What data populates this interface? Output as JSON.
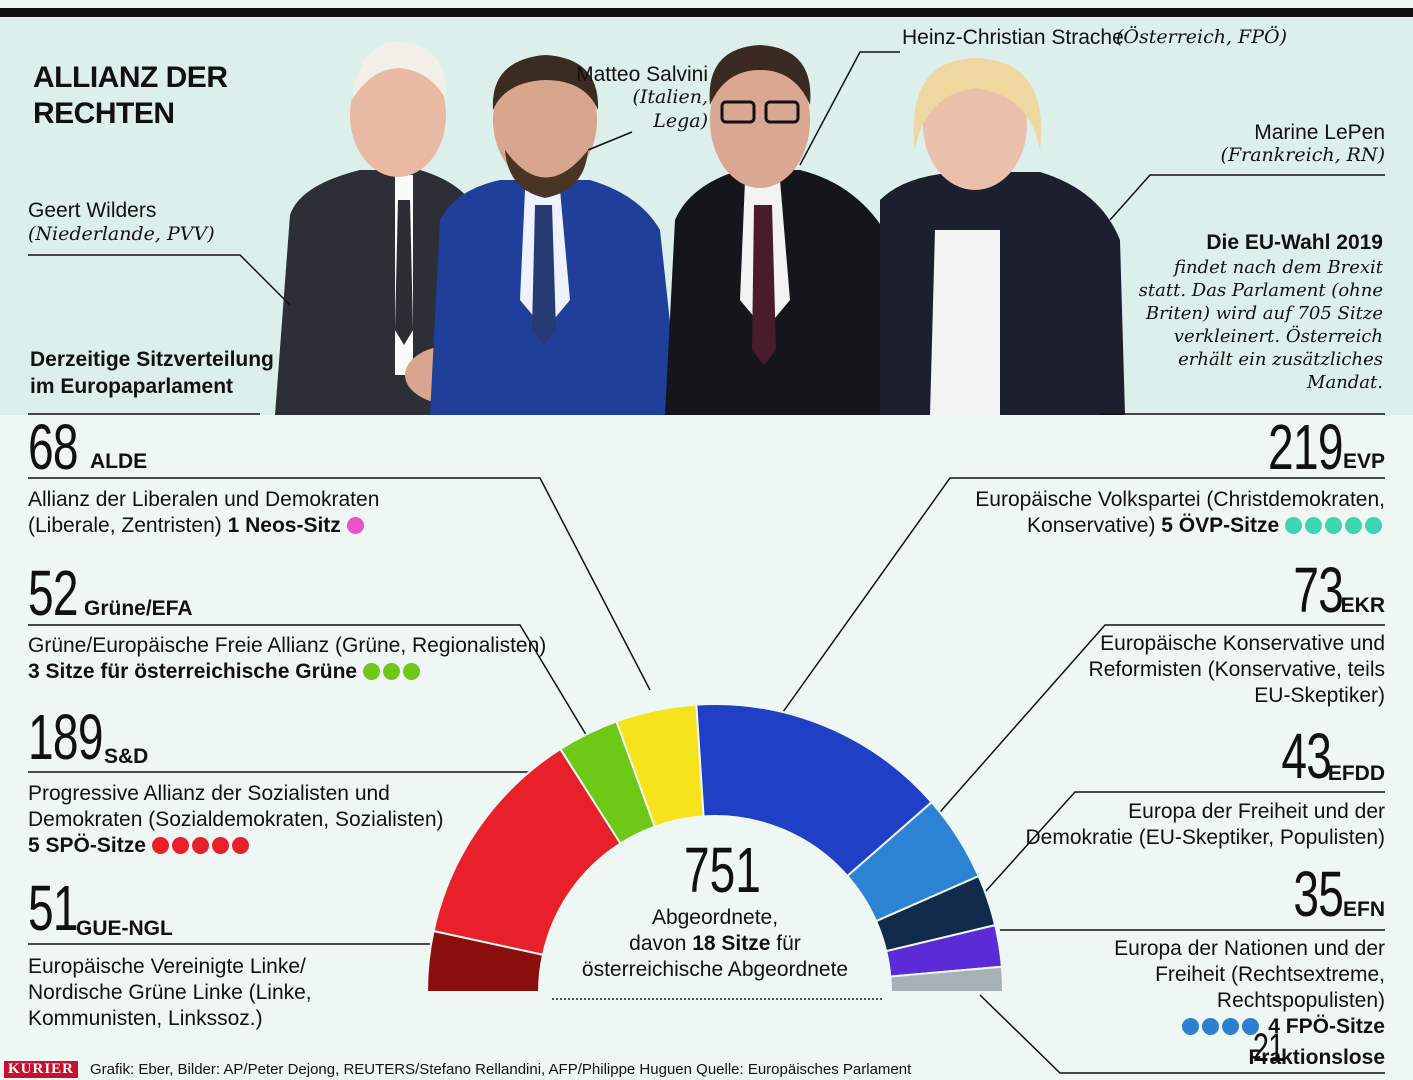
{
  "title": "ALLIANZ DER RECHTEN",
  "people": [
    {
      "name": "Geert Wilders",
      "note": "(Niederlande, PVV)"
    },
    {
      "name": "Matteo Salvini",
      "note": "(Italien, Lega)"
    },
    {
      "name": "Heinz-Christian Strache",
      "note": "(Österreich, FPÖ)"
    },
    {
      "name": "Marine LePen",
      "note": "(Frankreich, RN)"
    }
  ],
  "subhead": "Derzeitige Sitzverteilung im Europaparlament",
  "eu": {
    "title": "Die EU-Wahl 2019",
    "text": "findet nach dem Brexit statt. Das Parlament (ohne Briten) wird auf 705 Sitze verkleinert. Österreich erhält ein zusätzliches Mandat."
  },
  "chart_data": {
    "type": "pie",
    "subtype": "semicircle parliament",
    "total": 751,
    "total_label": "Abgeordnete,",
    "total_label2_pre": "davon",
    "total_label2_bold": "18 Sitze",
    "total_label2_post": "für",
    "total_label3": "österreichische Abgeordnete",
    "groups": [
      {
        "abbr": "GUE-NGL",
        "seats": 51,
        "color": "#8b0e0e",
        "desc": "Europäische Vereinigte Linke/ Nordische Grüne Linke (Linke, Kommunisten, Linkssoz.)",
        "austria": "",
        "dot_color": "",
        "dot_count": 0
      },
      {
        "abbr": "S&D",
        "seats": 189,
        "color": "#e8202a",
        "desc": "Progressive Allianz der Sozialisten und Demokraten (Sozialdemokraten, Sozialisten)",
        "austria": "5 SPÖ-Sitze",
        "dot_color": "#e8202a",
        "dot_count": 5
      },
      {
        "abbr": "Grüne/EFA",
        "seats": 52,
        "color": "#6ec816",
        "desc": "Grüne/Europäische Freie Allianz (Grüne, Regionalisten)",
        "austria": "3 Sitze für österreichische Grüne",
        "dot_color": "#6ec816",
        "dot_count": 3
      },
      {
        "abbr": "ALDE",
        "seats": 68,
        "color": "#f7e31c",
        "desc": "Allianz der Liberalen und Demokraten (Liberale, Zentristen)",
        "austria": "1 Neos-Sitz",
        "dot_color": "#ea52c8",
        "dot_count": 1
      },
      {
        "abbr": "EVP",
        "seats": 219,
        "color": "#1f3fc4",
        "desc": "Europäische Volkspartei (Christdemokraten, Konservative)",
        "austria": "5 ÖVP-Sitze",
        "dot_color": "#3dd6b0",
        "dot_count": 5
      },
      {
        "abbr": "EKR",
        "seats": 73,
        "color": "#2d83d3",
        "desc": "Europäische Konservative und Reformisten (Konservative, teils EU-Skeptiker)",
        "austria": "",
        "dot_color": "",
        "dot_count": 0
      },
      {
        "abbr": "EFDD",
        "seats": 43,
        "color": "#102c4a",
        "desc": "Europa der Freiheit und der Demokratie (EU-Skeptiker, Populisten)",
        "austria": "",
        "dot_color": "",
        "dot_count": 0
      },
      {
        "abbr": "EFN",
        "seats": 35,
        "color": "#5a2bd6",
        "desc": "Europa der Nationen und der Freiheit (Rechtsextreme, Rechtspopulisten)",
        "austria": "4 FPÖ-Sitze",
        "dot_color": "#2d7fd0",
        "dot_count": 4
      },
      {
        "abbr": "Fraktionslose",
        "seats": 21,
        "color": "#a7b2b6",
        "desc": "",
        "austria": "",
        "dot_color": "",
        "dot_count": 0
      }
    ]
  },
  "footer": {
    "brand": "KURIER",
    "credits": "Grafik: Eber, Bilder: AP/Peter Dejong, REUTERS/Stefano Rellandini, AFP/Philippe Huguen   Quelle: Europäisches Parlament"
  }
}
